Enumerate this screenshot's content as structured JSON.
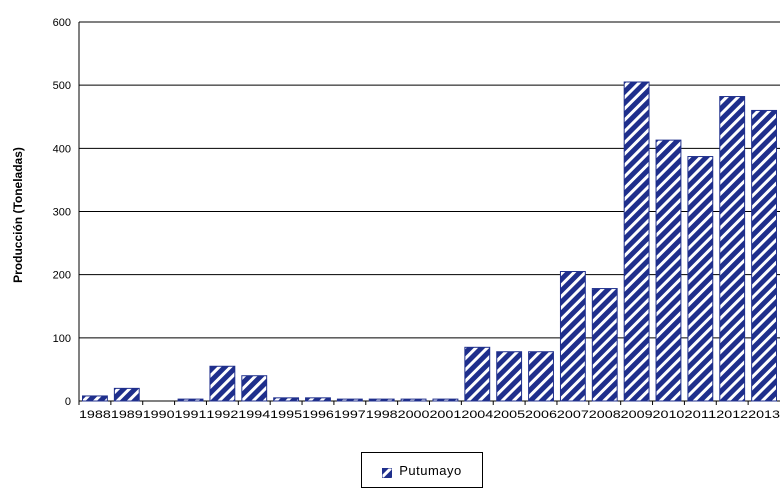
{
  "chart_data": {
    "type": "bar",
    "title": "",
    "xlabel": "",
    "ylabel": "Producción (Toneladas)",
    "ylim": [
      0,
      600
    ],
    "yticks": [
      "0",
      "100",
      "200",
      "300",
      "400",
      "500",
      "600"
    ],
    "grid": true,
    "legend_position": "bottom",
    "categories": [
      "1988",
      "1989",
      "1990",
      "1991",
      "1992",
      "1994",
      "1995",
      "1996",
      "1997",
      "1998",
      "2000",
      "2001",
      "2004",
      "2005",
      "2006",
      "2007",
      "2008",
      "2009",
      "2010",
      "2011",
      "2012",
      "2013"
    ],
    "series": [
      {
        "name": "Putumayo",
        "color": "#1f2f8c",
        "pattern": "diagonal-hatch",
        "values": [
          8,
          20,
          0,
          3,
          55,
          40,
          5,
          5,
          3,
          3,
          3,
          3,
          85,
          78,
          78,
          205,
          178,
          505,
          413,
          387,
          482,
          460
        ]
      }
    ]
  }
}
